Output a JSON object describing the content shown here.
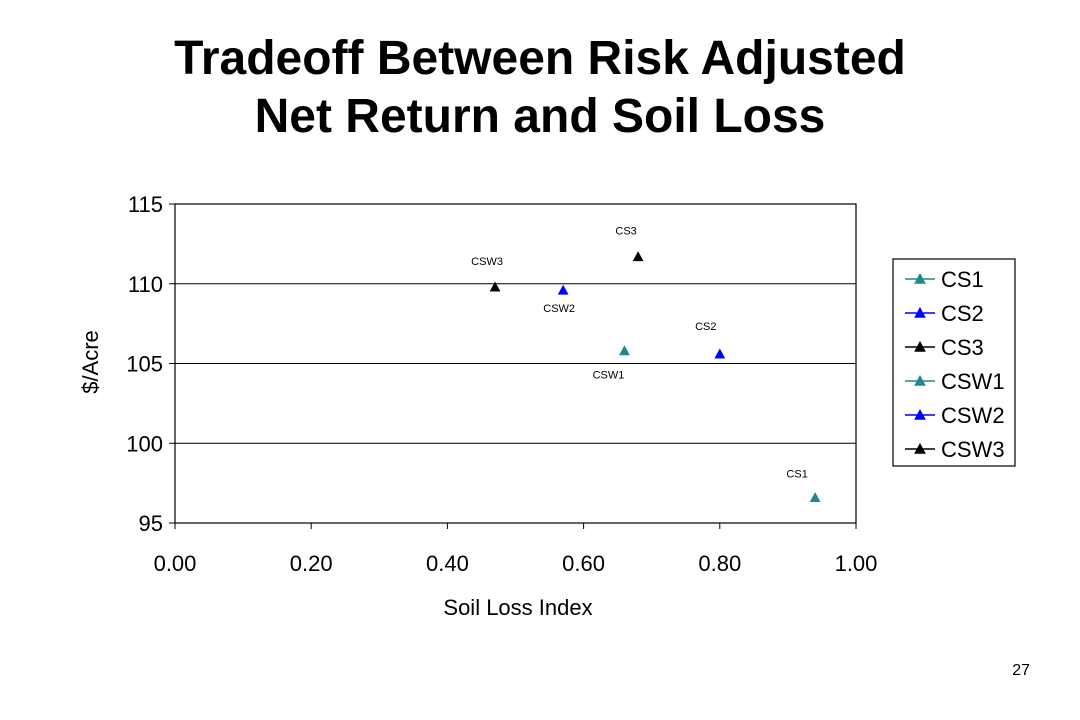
{
  "slide": {
    "title_line1": "Tradeoff Between Risk Adjusted",
    "title_line2": "Net Return and Soil Loss",
    "page_number": "27"
  },
  "colors": {
    "teal": "#1F8A8A",
    "blue": "#0000FF",
    "black": "#000000",
    "gridline": "#000000",
    "background": "#FFFFFF"
  },
  "chart_data": {
    "type": "scatter",
    "title": "",
    "xlabel": "Soil Loss Index",
    "ylabel": "$/Acre",
    "xlim": [
      0.0,
      1.0
    ],
    "ylim": [
      95,
      115
    ],
    "xticks": [
      "0.00",
      "0.20",
      "0.40",
      "0.60",
      "0.80",
      "1.00"
    ],
    "yticks": [
      "95",
      "100",
      "105",
      "110",
      "115"
    ],
    "grid": "horizontal major gridlines",
    "legend_position": "right",
    "series": [
      {
        "name": "CS1",
        "color": "teal",
        "marker": "triangle",
        "points": [
          {
            "x": 0.94,
            "y": 96.6,
            "label": "CS1"
          }
        ]
      },
      {
        "name": "CS2",
        "color": "blue",
        "marker": "triangle",
        "points": [
          {
            "x": 0.8,
            "y": 105.6,
            "label": "CS2"
          }
        ]
      },
      {
        "name": "CS3",
        "color": "black",
        "marker": "triangle",
        "points": [
          {
            "x": 0.68,
            "y": 111.7,
            "label": "CS3"
          }
        ]
      },
      {
        "name": "CSW1",
        "color": "teal",
        "marker": "triangle",
        "points": [
          {
            "x": 0.66,
            "y": 105.8,
            "label": "CSW1"
          }
        ]
      },
      {
        "name": "CSW2",
        "color": "blue",
        "marker": "triangle",
        "points": [
          {
            "x": 0.57,
            "y": 109.6,
            "label": "CSW2"
          }
        ]
      },
      {
        "name": "CSW3",
        "color": "black",
        "marker": "triangle",
        "points": [
          {
            "x": 0.47,
            "y": 109.8,
            "label": "CSW3"
          }
        ]
      }
    ]
  }
}
